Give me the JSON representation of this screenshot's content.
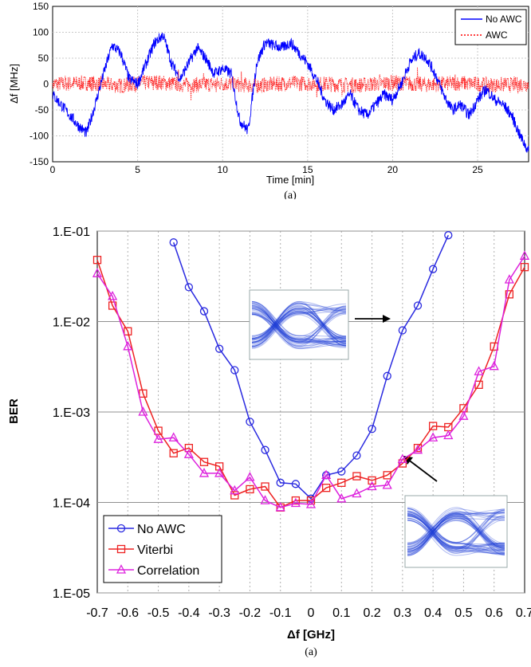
{
  "chart_data": [
    {
      "type": "line",
      "xlabel": "Time [min]",
      "ylabel": "Δf [MHz]",
      "xlim": [
        0,
        28
      ],
      "ylim": [
        -150,
        150
      ],
      "xticks": [
        "0",
        "5",
        "10",
        "15",
        "20",
        "25"
      ],
      "yticks": [
        "150",
        "100",
        "50",
        "0",
        "-50",
        "-100",
        "-150"
      ],
      "grid": true,
      "legend_position": "top-right",
      "caption": "(a)",
      "series": [
        {
          "name": "No AWC",
          "color": "#0000ff",
          "style": "solid",
          "x": [
            0,
            0.5,
            1,
            1.5,
            2,
            2.5,
            3,
            3.5,
            4,
            4.5,
            5,
            5.5,
            6,
            6.5,
            7,
            7.5,
            8,
            8.5,
            9,
            9.5,
            10,
            10.5,
            11,
            11.5,
            12,
            12.5,
            13,
            13.5,
            14,
            14.5,
            15,
            15.5,
            16,
            16.5,
            17,
            17.5,
            18,
            18.5,
            19,
            19.5,
            20,
            20.5,
            21,
            21.5,
            22,
            22.5,
            23,
            23.5,
            24,
            24.5,
            25,
            25.5,
            26,
            26.5,
            27,
            27.5,
            28
          ],
          "values": [
            -20,
            -40,
            -60,
            -80,
            -95,
            -40,
            20,
            75,
            60,
            10,
            0,
            40,
            80,
            95,
            40,
            10,
            40,
            70,
            50,
            20,
            30,
            20,
            -70,
            -90,
            40,
            80,
            75,
            70,
            80,
            60,
            40,
            10,
            -30,
            -50,
            -40,
            -20,
            -50,
            -60,
            -40,
            -20,
            -30,
            0,
            40,
            60,
            50,
            20,
            -20,
            -50,
            -40,
            -60,
            -30,
            -10,
            -30,
            -40,
            -60,
            -100,
            -130
          ]
        },
        {
          "name": "AWC",
          "color": "#ff0000",
          "style": "dotted",
          "x": [
            0,
            2,
            4,
            6,
            8,
            10,
            12,
            14,
            16,
            18,
            20,
            22,
            24,
            26,
            28
          ],
          "values": [
            0,
            2,
            -3,
            4,
            -2,
            1,
            -3,
            2,
            0,
            -2,
            3,
            -1,
            2,
            -2,
            0
          ]
        }
      ]
    },
    {
      "type": "line",
      "xlabel": "Δf [GHz]",
      "ylabel": "BER",
      "yscale": "log",
      "xlim": [
        -0.7,
        0.7
      ],
      "ylim": [
        "1.E-05",
        "1.E-01"
      ],
      "xticks": [
        "-0.7",
        "-0.6",
        "-0.5",
        "-0.4",
        "-0.3",
        "-0.2",
        "-0.1",
        "0",
        "0.1",
        "0.2",
        "0.3",
        "0.4",
        "0.5",
        "0.6",
        "0.7"
      ],
      "yticks": [
        "1.E-01",
        "1.E-02",
        "1.E-03",
        "1.E-04",
        "1.E-05"
      ],
      "grid": true,
      "legend_position": "bottom-left",
      "caption": "(a)",
      "series": [
        {
          "name": "No AWC",
          "color": "#2a2ae0",
          "marker": "circle",
          "x": [
            -0.45,
            -0.4,
            -0.35,
            -0.3,
            -0.25,
            -0.2,
            -0.15,
            -0.1,
            -0.05,
            0,
            0.05,
            0.1,
            0.15,
            0.2,
            0.25,
            0.3,
            0.35,
            0.4,
            0.45
          ],
          "values": [
            0.075,
            0.024,
            0.013,
            0.005,
            0.0029,
            0.00078,
            0.00038,
            0.000165,
            0.00016,
            0.00011,
            0.0002,
            0.00022,
            0.00033,
            0.00065,
            0.0025,
            0.008,
            0.015,
            0.038,
            0.09
          ]
        },
        {
          "name": "Viterbi",
          "color": "#ee2222",
          "marker": "square",
          "x": [
            -0.7,
            -0.65,
            -0.6,
            -0.55,
            -0.5,
            -0.45,
            -0.4,
            -0.35,
            -0.3,
            -0.25,
            -0.2,
            -0.15,
            -0.1,
            -0.05,
            0,
            0.05,
            0.1,
            0.15,
            0.2,
            0.25,
            0.3,
            0.35,
            0.4,
            0.45,
            0.5,
            0.55,
            0.6,
            0.65,
            0.7
          ],
          "values": [
            0.048,
            0.015,
            0.0078,
            0.0016,
            0.00062,
            0.00035,
            0.0004,
            0.00028,
            0.00025,
            0.00012,
            0.00014,
            0.00015,
            8.8e-05,
            0.000105,
            0.000105,
            0.000145,
            0.000165,
            0.000195,
            0.000175,
            0.0002,
            0.00027,
            0.0004,
            0.0007,
            0.00068,
            0.0011,
            0.002,
            0.0053,
            0.02,
            0.04
          ]
        },
        {
          "name": "Correlation",
          "color": "#dd22dd",
          "marker": "triangle",
          "x": [
            -0.7,
            -0.65,
            -0.6,
            -0.55,
            -0.5,
            -0.45,
            -0.4,
            -0.35,
            -0.3,
            -0.25,
            -0.2,
            -0.15,
            -0.1,
            -0.05,
            0,
            0.05,
            0.1,
            0.15,
            0.2,
            0.25,
            0.3,
            0.35,
            0.4,
            0.45,
            0.5,
            0.55,
            0.6,
            0.65,
            0.7
          ],
          "values": [
            0.034,
            0.019,
            0.0053,
            0.001,
            0.0005,
            0.00052,
            0.00034,
            0.00021,
            0.00021,
            0.000135,
            0.00019,
            0.000105,
            8.8e-05,
            9.8e-05,
            9.5e-05,
            0.0002,
            0.00011,
            0.000125,
            0.00015,
            0.000155,
            0.0003,
            0.00038,
            0.00052,
            0.00055,
            0.0009,
            0.0028,
            0.0032,
            0.029,
            0.053
          ]
        }
      ]
    }
  ]
}
